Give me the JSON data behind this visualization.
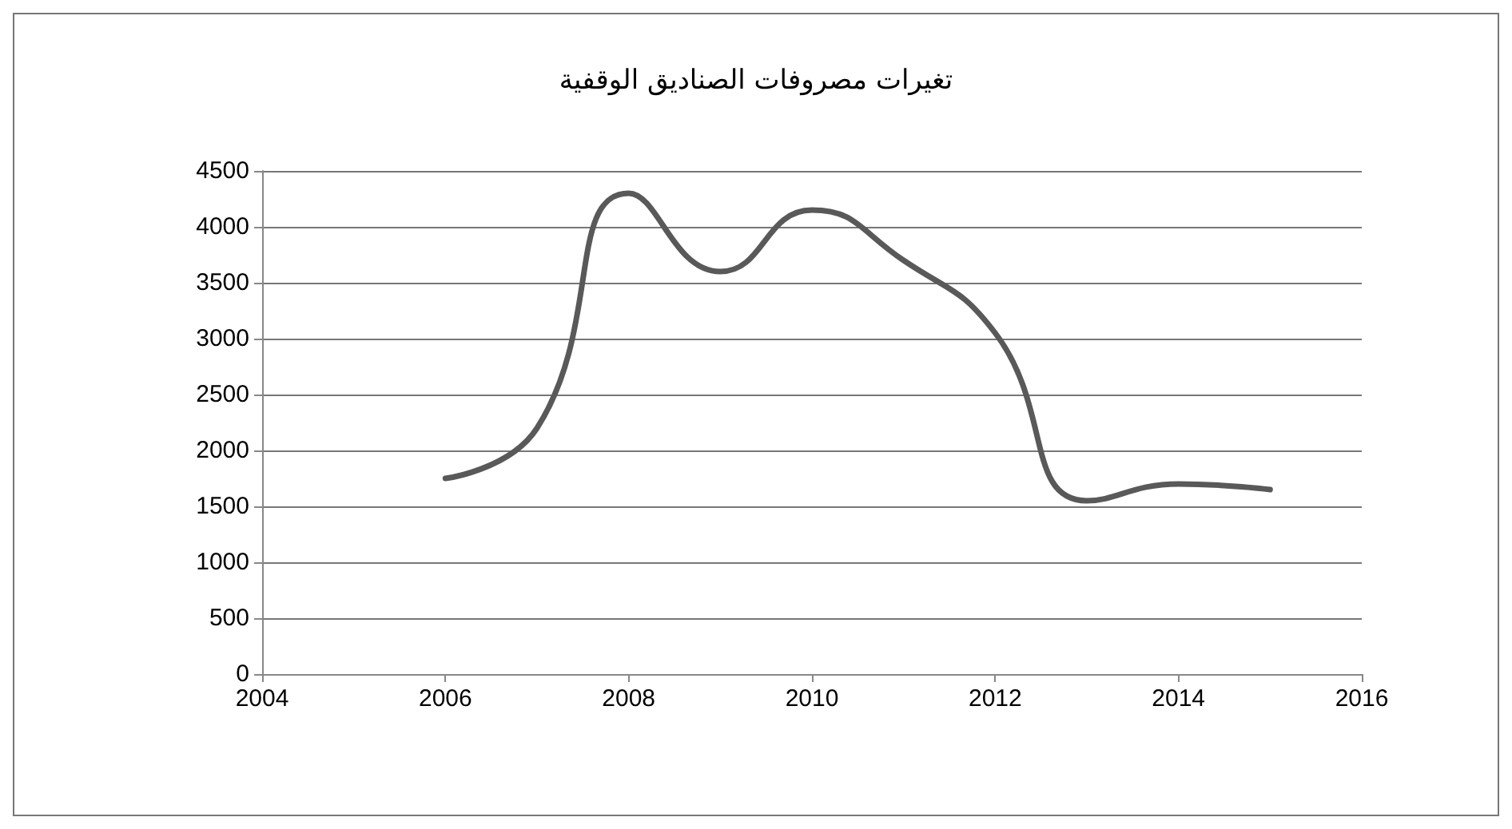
{
  "chart_data": {
    "type": "line",
    "title": "تغيرات مصروفات الصناديق الوقفية",
    "x": [
      2006,
      2007,
      2008,
      2009,
      2010,
      2011,
      2012,
      2013,
      2014,
      2015
    ],
    "series": [
      {
        "color": "#595959",
        "values": [
          1750,
          2200,
          4300,
          3600,
          4150,
          3700,
          3050,
          1550,
          1700,
          1650
        ]
      }
    ],
    "xlim": [
      2004,
      2016
    ],
    "xticks": [
      2004,
      2006,
      2008,
      2010,
      2012,
      2014,
      2016
    ],
    "ylim": [
      0,
      4500
    ],
    "yticks": [
      0,
      500,
      1000,
      1500,
      2000,
      2500,
      3000,
      3500,
      4000,
      4500
    ],
    "grid": "y",
    "marker": "none",
    "line_style": "solid"
  }
}
